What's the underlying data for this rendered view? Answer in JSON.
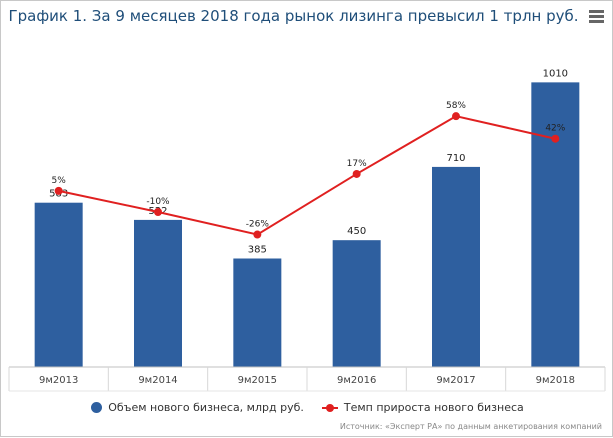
{
  "title": "График 1. За 9 месяцев 2018 года рынок лизинга превысил 1 трлн руб.",
  "source": "Источник: «Эксперт РА» по данным анкетирования компаний",
  "colors": {
    "bar": "#2e5f9f",
    "line": "#e02020",
    "title": "#1f4e79"
  },
  "menu_icon": "hamburger-menu-icon",
  "legend": {
    "bars": "Объем нового бизнеса, млрд руб.",
    "line": "Темп прироста нового бизнеса"
  },
  "chart_data": {
    "type": "bar",
    "categories": [
      "9м2013",
      "9м2014",
      "9м2015",
      "9м2016",
      "9м2017",
      "9м2018"
    ],
    "series": [
      {
        "name": "Объем нового бизнеса, млрд руб.",
        "type": "bar",
        "values": [
          583,
          522,
          385,
          450,
          710,
          1010
        ],
        "labels": [
          "583",
          "522",
          "385",
          "450",
          "710",
          "1010"
        ]
      },
      {
        "name": "Темп прироста нового бизнеса",
        "type": "line",
        "values": [
          5,
          -10,
          -26,
          17,
          58,
          42
        ],
        "labels": [
          "5%",
          "-10%",
          "-26%",
          "17%",
          "58%",
          "42%"
        ]
      }
    ],
    "ylim_bars": [
      0,
      1100
    ],
    "ylim_line": [
      -120,
      100
    ],
    "grid": false,
    "legend_position": "bottom"
  }
}
